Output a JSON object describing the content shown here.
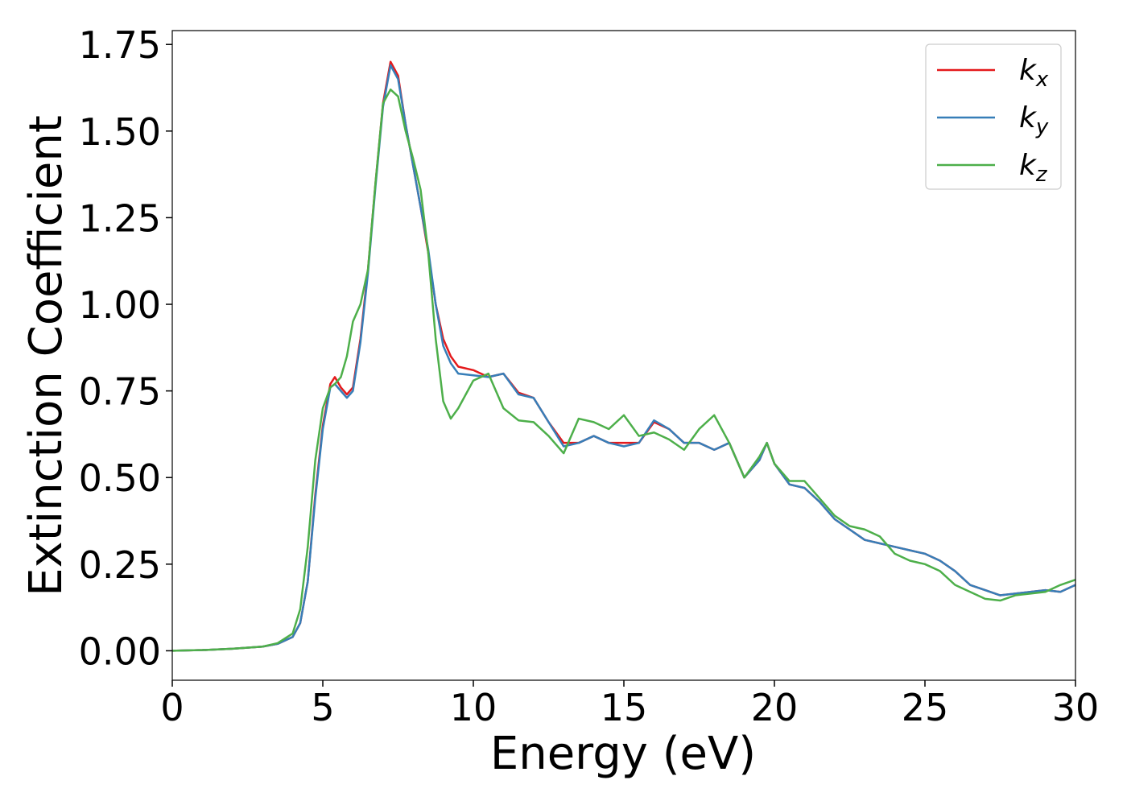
{
  "chart_data": {
    "type": "line",
    "xlabel": "Energy (eV)",
    "ylabel": "Extinction Coefficient",
    "x": [
      0,
      1,
      2,
      3,
      3.5,
      4,
      4.25,
      4.5,
      4.75,
      5,
      5.25,
      5.4,
      5.6,
      5.8,
      6,
      6.25,
      6.5,
      6.75,
      7,
      7.25,
      7.5,
      7.75,
      8,
      8.25,
      8.5,
      8.75,
      9,
      9.25,
      9.5,
      10,
      10.5,
      11,
      11.5,
      12,
      12.5,
      13,
      13.5,
      14,
      14.5,
      15,
      15.5,
      16,
      16.5,
      17,
      17.5,
      18,
      18.5,
      19,
      19.5,
      19.75,
      20,
      20.5,
      21,
      21.5,
      22,
      22.5,
      23,
      23.5,
      24,
      24.5,
      25,
      25.5,
      26,
      26.5,
      27,
      27.5,
      28,
      28.5,
      29,
      29.5,
      30
    ],
    "series": [
      {
        "name": "kx",
        "color": "#e41a1c",
        "values": [
          0,
          0.002,
          0.006,
          0.012,
          0.02,
          0.04,
          0.08,
          0.2,
          0.45,
          0.65,
          0.77,
          0.79,
          0.76,
          0.74,
          0.76,
          0.9,
          1.1,
          1.35,
          1.58,
          1.7,
          1.66,
          1.52,
          1.4,
          1.28,
          1.15,
          1.0,
          0.9,
          0.85,
          0.82,
          0.81,
          0.79,
          0.8,
          0.745,
          0.73,
          0.66,
          0.6,
          0.6,
          0.62,
          0.6,
          0.6,
          0.6,
          0.66,
          0.64,
          0.6,
          0.6,
          0.58,
          0.6,
          0.5,
          0.55,
          0.6,
          0.54,
          0.48,
          0.47,
          0.43,
          0.38,
          0.35,
          0.32,
          0.31,
          0.3,
          0.29,
          0.28,
          0.26,
          0.23,
          0.19,
          0.175,
          0.16,
          0.165,
          0.17,
          0.175,
          0.17,
          0.19
        ]
      },
      {
        "name": "ky",
        "color": "#377eb8",
        "values": [
          0,
          0.002,
          0.006,
          0.012,
          0.02,
          0.04,
          0.08,
          0.2,
          0.44,
          0.64,
          0.76,
          0.77,
          0.75,
          0.73,
          0.75,
          0.89,
          1.09,
          1.34,
          1.57,
          1.69,
          1.65,
          1.52,
          1.4,
          1.28,
          1.16,
          1.0,
          0.88,
          0.83,
          0.8,
          0.795,
          0.79,
          0.8,
          0.74,
          0.73,
          0.66,
          0.59,
          0.6,
          0.62,
          0.6,
          0.59,
          0.6,
          0.665,
          0.64,
          0.6,
          0.6,
          0.58,
          0.6,
          0.5,
          0.55,
          0.6,
          0.54,
          0.48,
          0.47,
          0.43,
          0.38,
          0.35,
          0.32,
          0.31,
          0.3,
          0.29,
          0.28,
          0.26,
          0.23,
          0.19,
          0.175,
          0.16,
          0.165,
          0.17,
          0.175,
          0.17,
          0.19
        ]
      },
      {
        "name": "kz",
        "color": "#4daf4a",
        "values": [
          0,
          0.002,
          0.006,
          0.012,
          0.022,
          0.05,
          0.12,
          0.3,
          0.55,
          0.7,
          0.76,
          0.77,
          0.79,
          0.85,
          0.95,
          1.0,
          1.1,
          1.35,
          1.58,
          1.62,
          1.6,
          1.5,
          1.42,
          1.33,
          1.15,
          0.9,
          0.72,
          0.67,
          0.7,
          0.78,
          0.8,
          0.7,
          0.665,
          0.66,
          0.62,
          0.57,
          0.67,
          0.66,
          0.64,
          0.68,
          0.62,
          0.63,
          0.61,
          0.58,
          0.64,
          0.68,
          0.6,
          0.5,
          0.56,
          0.6,
          0.54,
          0.49,
          0.49,
          0.44,
          0.39,
          0.36,
          0.35,
          0.33,
          0.28,
          0.26,
          0.25,
          0.23,
          0.19,
          0.17,
          0.15,
          0.145,
          0.16,
          0.165,
          0.17,
          0.19,
          0.205
        ]
      }
    ],
    "xlim": [
      0,
      30
    ],
    "xticks": [
      0,
      5,
      10,
      15,
      20,
      25,
      30
    ],
    "ylim": [
      -0.085,
      1.79
    ],
    "yticks": [
      {
        "value": 0,
        "label": "0.00"
      },
      {
        "value": 0.25,
        "label": "0.25"
      },
      {
        "value": 0.5,
        "label": "0.50"
      },
      {
        "value": 0.75,
        "label": "0.75"
      },
      {
        "value": 1.0,
        "label": "1.00"
      },
      {
        "value": 1.25,
        "label": "1.25"
      },
      {
        "value": 1.5,
        "label": "1.50"
      },
      {
        "value": 1.75,
        "label": "1.75"
      }
    ],
    "legend": "upper right",
    "grid": false
  }
}
